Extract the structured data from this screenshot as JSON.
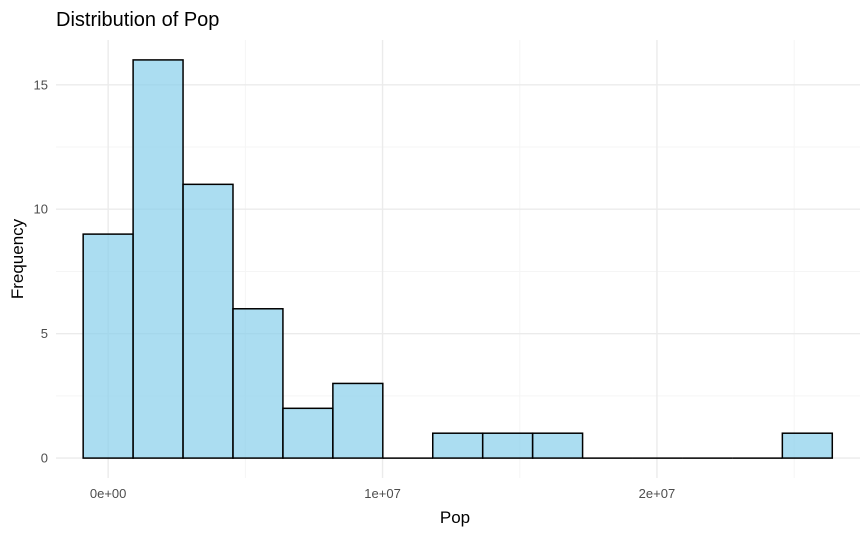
{
  "chart_data": {
    "type": "bar",
    "title": "Distribution of Pop",
    "xlabel": "Pop",
    "ylabel": "Frequency",
    "bin_width": 1820000,
    "bins": [
      {
        "start": -910000,
        "end": 910000,
        "count": 9
      },
      {
        "start": 910000,
        "end": 2730000,
        "count": 16
      },
      {
        "start": 2730000,
        "end": 4550000,
        "count": 11
      },
      {
        "start": 4550000,
        "end": 6370000,
        "count": 6
      },
      {
        "start": 6370000,
        "end": 8190000,
        "count": 2
      },
      {
        "start": 8190000,
        "end": 10010000,
        "count": 3
      },
      {
        "start": 10010000,
        "end": 11830000,
        "count": 0
      },
      {
        "start": 11830000,
        "end": 13650000,
        "count": 1
      },
      {
        "start": 13650000,
        "end": 15470000,
        "count": 1
      },
      {
        "start": 15470000,
        "end": 17290000,
        "count": 1
      },
      {
        "start": 17290000,
        "end": 19110000,
        "count": 0
      },
      {
        "start": 19110000,
        "end": 20930000,
        "count": 0
      },
      {
        "start": 20930000,
        "end": 22750000,
        "count": 0
      },
      {
        "start": 22750000,
        "end": 24570000,
        "count": 0
      },
      {
        "start": 24570000,
        "end": 26390000,
        "count": 1
      }
    ],
    "xlim": [
      -1900000,
      27400000
    ],
    "ylim": [
      -0.8,
      16.8
    ],
    "x_ticks": [
      {
        "value": 0,
        "label": "0e+00"
      },
      {
        "value": 10000000,
        "label": "1e+07"
      },
      {
        "value": 20000000,
        "label": "2e+07"
      }
    ],
    "y_ticks": [
      {
        "value": 0,
        "label": "0"
      },
      {
        "value": 5,
        "label": "5"
      },
      {
        "value": 10,
        "label": "10"
      },
      {
        "value": 15,
        "label": "15"
      }
    ],
    "x_minor_ticks": [
      -5000000,
      5000000,
      15000000,
      25000000
    ],
    "y_minor_ticks": [
      2.5,
      7.5,
      12.5
    ],
    "grid": true,
    "colors": {
      "bar_fill": "#87ceeb",
      "bar_stroke": "#000000",
      "grid_major": "#ebebeb",
      "grid_minor": "#f5f5f5"
    }
  }
}
